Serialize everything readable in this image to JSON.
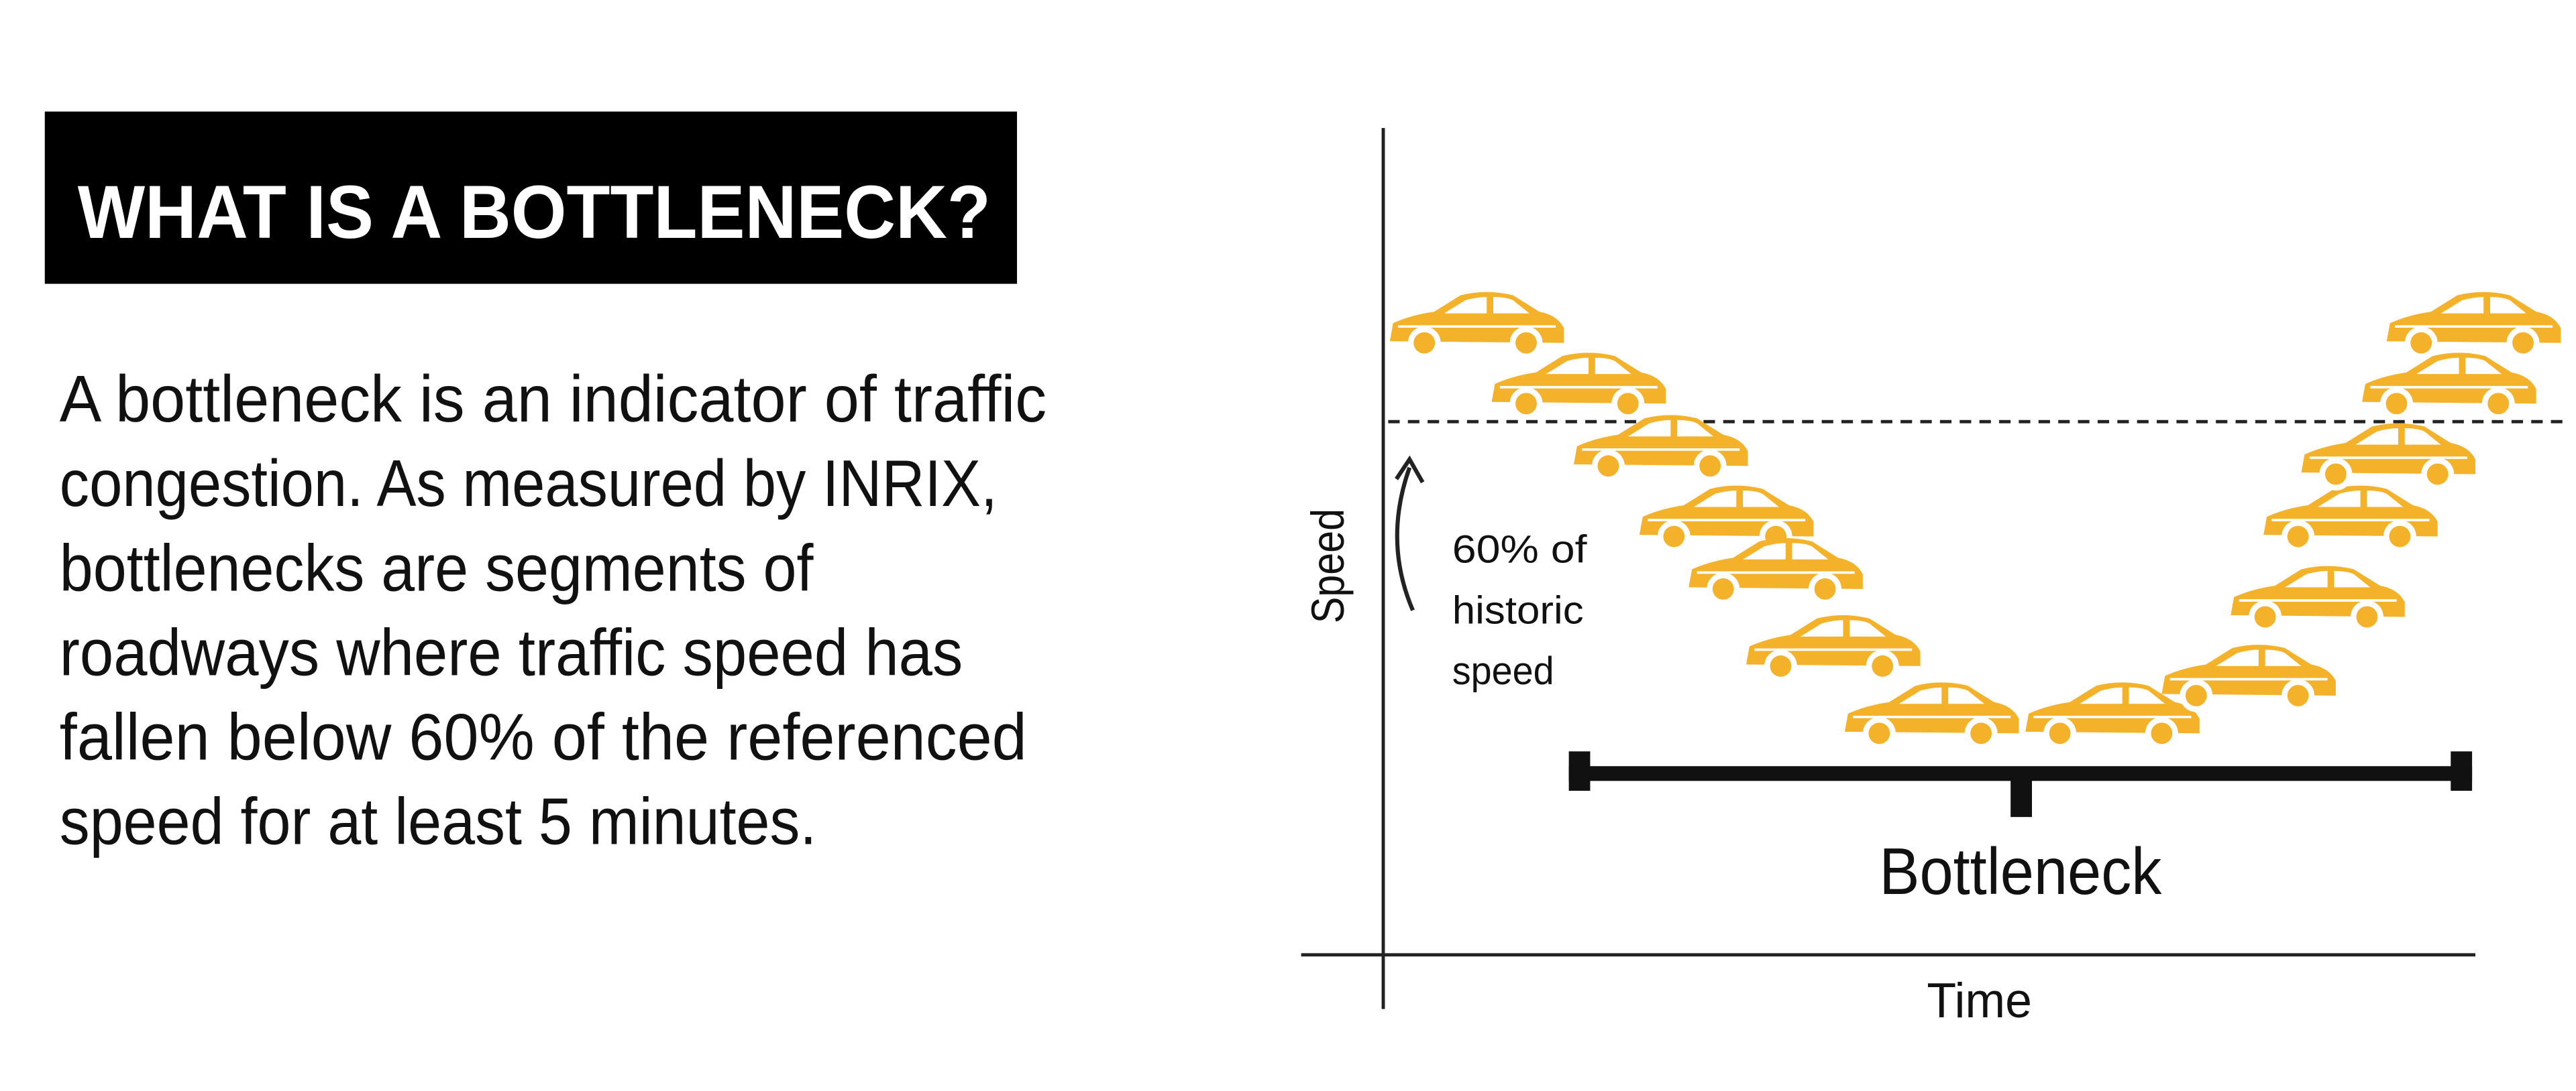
{
  "header": {
    "title": "WHAT IS A BOTTLENECK?"
  },
  "description": {
    "lines": [
      "A bottleneck is an indicator of traffic",
      "congestion. As measured by INRIX,",
      "bottlenecks are segments of",
      "roadways where traffic speed has",
      "fallen below 60% of the referenced",
      "speed for at least 5 minutes."
    ]
  },
  "diagram": {
    "y_axis_label": "Speed",
    "x_axis_label": "Time",
    "threshold_label": [
      "60% of",
      "historic",
      "speed"
    ],
    "bottleneck_label": "Bottleneck"
  }
}
